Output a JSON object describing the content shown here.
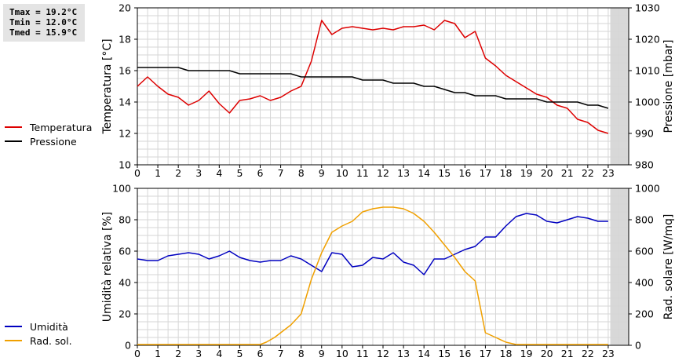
{
  "stats": {
    "tmax": "Tmax = 19.2°C",
    "tmin": "Tmin = 12.0°C",
    "tmed": "Tmed = 15.9°C"
  },
  "chart_data": [
    {
      "type": "line",
      "ylabel": "Temperatura [°C]",
      "y2label": "Pressione [mbar]",
      "xlim": [
        0,
        24
      ],
      "ylim": [
        10,
        20
      ],
      "y2lim": [
        980,
        1030
      ],
      "xticks": [
        "0",
        "1",
        "2",
        "3",
        "4",
        "5",
        "6",
        "7",
        "8",
        "9",
        "10",
        "11",
        "12",
        "13",
        "14",
        "15",
        "16",
        "17",
        "18",
        "19",
        "20",
        "21",
        "22",
        "23"
      ],
      "yticks": [
        "10",
        "12",
        "14",
        "16",
        "18",
        "20"
      ],
      "y2ticks": [
        "980",
        "990",
        "1000",
        "1010",
        "1020",
        "1030"
      ],
      "grid": true,
      "legend_position": "left",
      "shaded_region": [
        23.1,
        24
      ],
      "series": [
        {
          "name": "Temperatura",
          "axis": "left",
          "color": "#dd0000",
          "x": [
            0,
            0.5,
            1,
            1.5,
            2,
            2.5,
            3,
            3.5,
            4,
            4.5,
            5,
            5.5,
            6,
            6.5,
            7,
            7.5,
            8,
            8.5,
            9,
            9.5,
            10,
            10.5,
            11,
            11.5,
            12,
            12.5,
            13,
            13.5,
            14,
            14.5,
            15,
            15.5,
            16,
            16.5,
            17,
            17.5,
            18,
            18.5,
            19,
            19.5,
            20,
            20.5,
            21,
            21.5,
            22,
            22.5,
            23
          ],
          "values": [
            15.0,
            15.6,
            15.0,
            14.5,
            14.3,
            13.8,
            14.1,
            14.7,
            13.9,
            13.3,
            14.1,
            14.2,
            14.4,
            14.1,
            14.3,
            14.7,
            15.0,
            16.6,
            19.2,
            18.3,
            18.7,
            18.8,
            18.7,
            18.6,
            18.7,
            18.6,
            18.8,
            18.8,
            18.9,
            18.6,
            19.2,
            19.0,
            18.1,
            18.5,
            16.8,
            16.3,
            15.7,
            15.3,
            14.9,
            14.5,
            14.3,
            13.8,
            13.6,
            12.9,
            12.7,
            12.2,
            12.0
          ]
        },
        {
          "name": "Pressione",
          "axis": "right",
          "color": "#000000",
          "x": [
            0,
            0.5,
            1,
            1.5,
            2,
            2.5,
            3,
            3.5,
            4,
            4.5,
            5,
            5.5,
            6,
            6.5,
            7,
            7.5,
            8,
            8.5,
            9,
            9.5,
            10,
            10.5,
            11,
            11.5,
            12,
            12.5,
            13,
            13.5,
            14,
            14.5,
            15,
            15.5,
            16,
            16.5,
            17,
            17.5,
            18,
            18.5,
            19,
            19.5,
            20,
            20.5,
            21,
            21.5,
            22,
            22.5,
            23
          ],
          "values": [
            1011,
            1011,
            1011,
            1011,
            1011,
            1010,
            1010,
            1010,
            1010,
            1010,
            1009,
            1009,
            1009,
            1009,
            1009,
            1009,
            1008,
            1008,
            1008,
            1008,
            1008,
            1008,
            1007,
            1007,
            1007,
            1006,
            1006,
            1006,
            1005,
            1005,
            1004,
            1003,
            1003,
            1002,
            1002,
            1002,
            1001,
            1001,
            1001,
            1001,
            1000,
            1000,
            1000,
            1000,
            999,
            999,
            998
          ]
        }
      ]
    },
    {
      "type": "line",
      "ylabel": "Umidità relativa [%]",
      "y2label": "Rad. solare [W/mq]",
      "xlim": [
        0,
        24
      ],
      "ylim": [
        0,
        100
      ],
      "y2lim": [
        0,
        1000
      ],
      "xticks": [
        "0",
        "1",
        "2",
        "3",
        "4",
        "5",
        "6",
        "7",
        "8",
        "9",
        "10",
        "11",
        "12",
        "13",
        "14",
        "15",
        "16",
        "17",
        "18",
        "19",
        "20",
        "21",
        "22",
        "23"
      ],
      "yticks": [
        "0",
        "20",
        "40",
        "60",
        "80",
        "100"
      ],
      "y2ticks": [
        "0",
        "200",
        "400",
        "600",
        "800",
        "1000"
      ],
      "grid": true,
      "legend_position": "left",
      "shaded_region": [
        23.1,
        24
      ],
      "series": [
        {
          "name": "Umidità",
          "axis": "left",
          "color": "#0000c0",
          "x": [
            0,
            0.5,
            1,
            1.5,
            2,
            2.5,
            3,
            3.5,
            4,
            4.5,
            5,
            5.5,
            6,
            6.5,
            7,
            7.5,
            8,
            8.5,
            9,
            9.5,
            10,
            10.5,
            11,
            11.5,
            12,
            12.5,
            13,
            13.5,
            14,
            14.5,
            15,
            15.5,
            16,
            16.5,
            17,
            17.5,
            18,
            18.5,
            19,
            19.5,
            20,
            20.5,
            21,
            21.5,
            22,
            22.5,
            23
          ],
          "values": [
            55,
            54,
            54,
            57,
            58,
            59,
            58,
            55,
            57,
            60,
            56,
            54,
            53,
            54,
            54,
            57,
            55,
            51,
            47,
            59,
            58,
            50,
            51,
            56,
            55,
            59,
            53,
            51,
            45,
            55,
            55,
            58,
            61,
            63,
            69,
            69,
            76,
            82,
            84,
            83,
            79,
            78,
            80,
            82,
            81,
            79,
            79
          ]
        },
        {
          "name": "Rad. sol.",
          "axis": "right",
          "color": "#f0a000",
          "x": [
            0,
            1,
            2,
            3,
            4,
            5,
            6,
            6.3,
            6.7,
            7,
            7.5,
            8,
            8.5,
            9,
            9.5,
            10,
            10.5,
            11,
            11.5,
            12,
            12.5,
            13,
            13.5,
            14,
            14.5,
            15,
            15.5,
            16,
            16.5,
            17,
            17.5,
            18,
            18.5,
            19,
            20,
            21,
            22,
            23
          ],
          "values": [
            5,
            5,
            5,
            5,
            5,
            5,
            5,
            20,
            50,
            80,
            130,
            200,
            420,
            590,
            720,
            760,
            790,
            850,
            870,
            880,
            880,
            870,
            840,
            790,
            720,
            640,
            560,
            470,
            410,
            80,
            50,
            20,
            5,
            5,
            5,
            5,
            5,
            5
          ]
        }
      ]
    }
  ]
}
